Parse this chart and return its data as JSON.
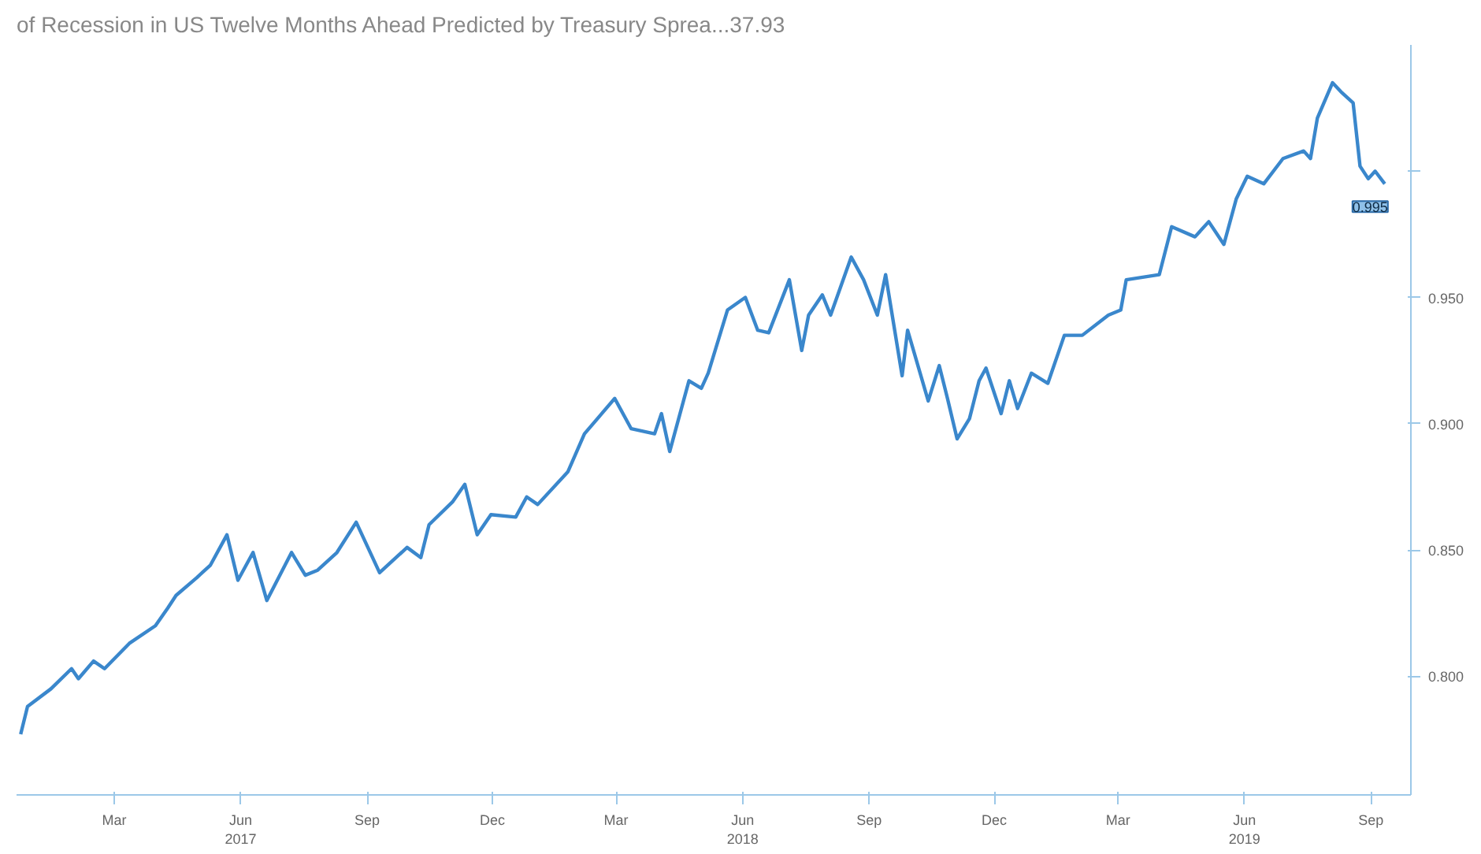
{
  "chart_data": {
    "type": "line",
    "title": "of Recession in US Twelve Months Ahead Predicted by Treasury Sprea...37.93",
    "x": [
      "2016-12-23",
      "2016-12-28",
      "2017-01-14",
      "2017-01-29",
      "2017-02-03",
      "2017-02-14",
      "2017-02-22",
      "2017-03-12",
      "2017-03-31",
      "2017-04-09",
      "2017-04-15",
      "2017-04-30",
      "2017-05-10",
      "2017-05-22",
      "2017-05-30",
      "2017-06-10",
      "2017-06-20",
      "2017-07-08",
      "2017-07-18",
      "2017-07-27",
      "2017-08-10",
      "2017-08-24",
      "2017-09-10",
      "2017-09-30",
      "2017-10-10",
      "2017-10-16",
      "2017-11-02",
      "2017-11-11",
      "2017-11-20",
      "2017-11-30",
      "2017-12-18",
      "2017-12-26",
      "2018-01-03",
      "2018-01-25",
      "2018-02-06",
      "2018-02-28",
      "2018-03-12",
      "2018-03-29",
      "2018-04-03",
      "2018-04-09",
      "2018-04-23",
      "2018-05-02",
      "2018-05-07",
      "2018-05-21",
      "2018-06-03",
      "2018-06-12",
      "2018-06-20",
      "2018-07-05",
      "2018-07-14",
      "2018-07-19",
      "2018-07-29",
      "2018-08-04",
      "2018-08-19",
      "2018-08-28",
      "2018-09-07",
      "2018-09-13",
      "2018-09-25",
      "2018-09-29",
      "2018-10-14",
      "2018-10-22",
      "2018-10-28",
      "2018-11-04",
      "2018-11-13",
      "2018-11-20",
      "2018-11-25",
      "2018-12-06",
      "2018-12-12",
      "2018-12-18",
      "2018-12-28",
      "2019-01-09",
      "2019-01-21",
      "2019-02-03",
      "2019-02-22",
      "2019-03-03",
      "2019-03-07",
      "2019-03-31",
      "2019-04-09",
      "2019-04-26",
      "2019-05-06",
      "2019-05-17",
      "2019-05-26",
      "2019-06-03",
      "2019-06-15",
      "2019-06-29",
      "2019-07-14",
      "2019-07-19",
      "2019-07-24",
      "2019-08-04",
      "2019-08-11",
      "2019-08-19",
      "2019-08-24",
      "2019-08-30",
      "2019-09-04",
      "2019-09-11"
    ],
    "series": [
      {
        "color": "#3a87cc",
        "values": [
          0.777,
          0.788,
          0.795,
          0.803,
          0.799,
          0.806,
          0.803,
          0.813,
          0.82,
          0.827,
          0.832,
          0.839,
          0.844,
          0.856,
          0.838,
          0.849,
          0.83,
          0.849,
          0.84,
          0.842,
          0.849,
          0.861,
          0.841,
          0.851,
          0.847,
          0.86,
          0.869,
          0.876,
          0.856,
          0.864,
          0.863,
          0.871,
          0.868,
          0.881,
          0.896,
          0.91,
          0.898,
          0.896,
          0.904,
          0.889,
          0.917,
          0.914,
          0.92,
          0.945,
          0.95,
          0.937,
          0.936,
          0.957,
          0.929,
          0.943,
          0.951,
          0.943,
          0.966,
          0.957,
          0.943,
          0.959,
          0.919,
          0.937,
          0.909,
          0.923,
          0.91,
          0.894,
          0.902,
          0.917,
          0.922,
          0.904,
          0.917,
          0.906,
          0.92,
          0.916,
          0.935,
          0.935,
          0.943,
          0.945,
          0.957,
          0.959,
          0.978,
          0.974,
          0.98,
          0.971,
          0.989,
          0.998,
          0.995,
          1.005,
          1.008,
          1.005,
          1.021,
          1.035,
          1.031,
          1.027,
          1.002,
          0.997,
          1.0,
          0.995
        ]
      }
    ],
    "xlim": [
      "2016-12-20",
      "2019-09-30"
    ],
    "xticks": [
      {
        "value": "2017-03",
        "label": "Mar"
      },
      {
        "value": "2017-06",
        "label": "Jun\n2017"
      },
      {
        "value": "2017-09",
        "label": "Sep"
      },
      {
        "value": "2017-12",
        "label": "Dec"
      },
      {
        "value": "2018-03",
        "label": "Mar"
      },
      {
        "value": "2018-06",
        "label": "Jun\n2018"
      },
      {
        "value": "2018-09",
        "label": "Sep"
      },
      {
        "value": "2018-12",
        "label": "Dec"
      },
      {
        "value": "2019-03",
        "label": "Mar"
      },
      {
        "value": "2019-06",
        "label": "Jun\n2019"
      },
      {
        "value": "2019-09",
        "label": "Sep"
      }
    ],
    "ylim": [
      0.753,
      1.05
    ],
    "yticks": [
      {
        "value": 0.8,
        "label": "0.800"
      },
      {
        "value": 0.85,
        "label": "0.850"
      },
      {
        "value": 0.9,
        "label": "0.900"
      },
      {
        "value": 0.95,
        "label": "0.950"
      },
      {
        "value": 1.0,
        "label": null
      }
    ],
    "annotations": [
      {
        "text": "0.995",
        "x": "2019-09-11",
        "y": 0.995
      }
    ],
    "grid": false
  }
}
